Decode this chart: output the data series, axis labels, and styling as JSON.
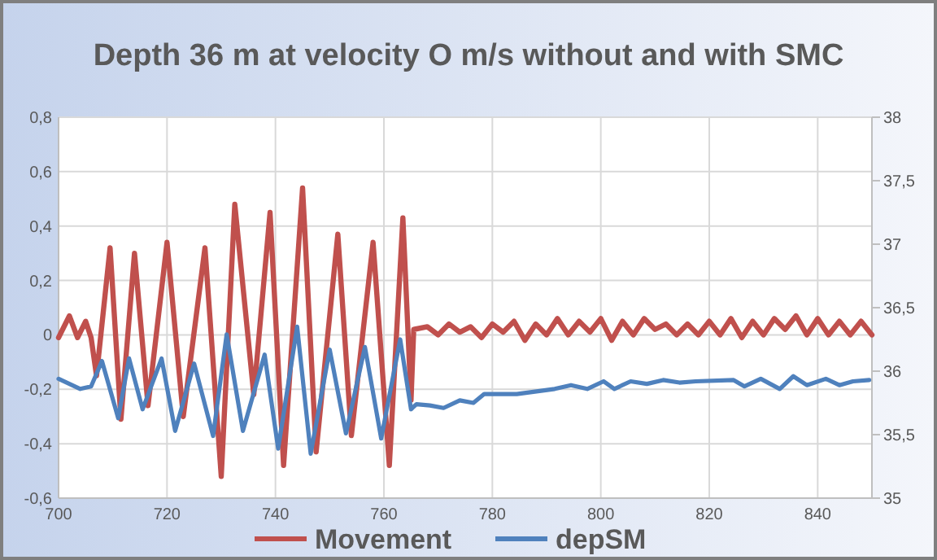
{
  "chart_data": {
    "type": "line",
    "title": "Depth 36 m at velocity O m/s without and with SMC",
    "xlim": [
      700,
      850
    ],
    "xticks": [
      700,
      720,
      740,
      760,
      780,
      800,
      820,
      840
    ],
    "ylim": [
      -0.6,
      0.8
    ],
    "yticks": [
      {
        "value": -0.6,
        "label": "-0,6"
      },
      {
        "value": -0.4,
        "label": "-0,4"
      },
      {
        "value": -0.2,
        "label": "-0,2"
      },
      0,
      {
        "value": 0.2,
        "label": "0,2"
      },
      {
        "value": 0.4,
        "label": "0,4"
      },
      {
        "value": 0.6,
        "label": "0,6"
      },
      {
        "value": 0.8,
        "label": "0,8"
      }
    ],
    "y2lim": [
      35,
      38
    ],
    "y2ticks": [
      35,
      {
        "value": 35.5,
        "label": "35,5"
      },
      36,
      {
        "value": 36.5,
        "label": "36,5"
      },
      37,
      {
        "value": 37.5,
        "label": "37,5"
      },
      38
    ],
    "grid": true,
    "legend": "bottom",
    "marker": "none",
    "line_style": "solid",
    "series": [
      {
        "name": "Movement",
        "color": "#c0504d",
        "x": [
          700,
          702,
          703.5,
          705,
          706,
          707,
          709.5,
          711.5,
          714,
          716.5,
          720,
          723,
          727,
          730,
          732.5,
          736,
          739,
          741.5,
          745,
          747.5,
          751.5,
          754,
          758,
          761,
          763.5,
          765,
          765.5,
          768,
          770,
          772,
          774,
          776,
          778,
          780,
          782,
          784,
          786,
          788,
          790,
          792,
          794,
          796,
          798,
          800,
          802,
          804,
          806,
          808,
          810,
          812,
          814,
          816,
          818,
          820,
          822,
          824,
          826,
          828,
          830,
          832,
          834,
          836,
          838,
          840,
          842,
          844,
          846,
          848,
          850
        ],
        "values": [
          -0.01,
          0.07,
          -0.01,
          0.05,
          -0.01,
          -0.15,
          0.32,
          -0.31,
          0.3,
          -0.26,
          0.34,
          -0.3,
          0.32,
          -0.52,
          0.48,
          -0.22,
          0.45,
          -0.48,
          0.54,
          -0.43,
          0.37,
          -0.37,
          0.34,
          -0.48,
          0.43,
          -0.24,
          0.02,
          0.03,
          0.0,
          0.04,
          0.01,
          0.03,
          -0.01,
          0.04,
          0.01,
          0.05,
          -0.02,
          0.04,
          0.0,
          0.06,
          0.0,
          0.05,
          0.01,
          0.06,
          -0.02,
          0.05,
          0.0,
          0.06,
          0.02,
          0.04,
          0.0,
          0.04,
          0.0,
          0.05,
          0.0,
          0.06,
          -0.01,
          0.05,
          0.0,
          0.06,
          0.02,
          0.07,
          0.0,
          0.06,
          0.0,
          0.05,
          0.0,
          0.05,
          0.0
        ]
      },
      {
        "name": "depSM",
        "color": "#4f81bd",
        "axis": "y2",
        "x": [
          700,
          704,
          706,
          708,
          711,
          713,
          715.5,
          719,
          721.5,
          725,
          728.5,
          731,
          734,
          738,
          740.5,
          744,
          746.5,
          750,
          753,
          756.5,
          759.5,
          763,
          765,
          766,
          768.5,
          771,
          774,
          776.5,
          778.5,
          784.5,
          791.5,
          794.5,
          797.5,
          800.5,
          802.5,
          805.5,
          808.5,
          811.5,
          814.5,
          817.5,
          824.5,
          826.5,
          829.5,
          833,
          835.5,
          838,
          841.5,
          844,
          846.5,
          849.5
        ],
        "values": [
          35.94,
          35.86,
          35.88,
          36.08,
          35.63,
          36.1,
          35.7,
          36.1,
          35.53,
          36.06,
          35.49,
          36.29,
          35.53,
          36.13,
          35.39,
          36.35,
          35.35,
          36.17,
          35.51,
          36.19,
          35.47,
          36.25,
          35.7,
          35.74,
          35.73,
          35.71,
          35.77,
          35.75,
          35.82,
          35.82,
          35.86,
          35.89,
          35.86,
          35.92,
          35.86,
          35.92,
          35.9,
          35.93,
          35.91,
          35.92,
          35.93,
          35.88,
          35.94,
          35.86,
          35.96,
          35.89,
          35.94,
          35.89,
          35.92,
          35.93
        ]
      }
    ]
  }
}
